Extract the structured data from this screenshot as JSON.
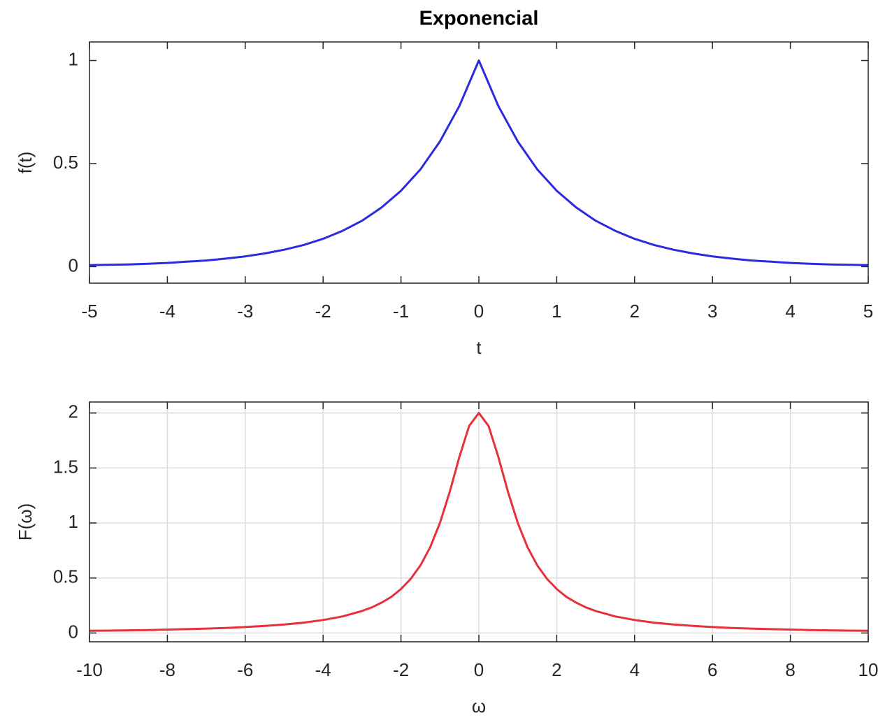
{
  "chart_data": [
    {
      "type": "line",
      "title": "Exponencial",
      "xlabel": "t",
      "ylabel": "f(t)",
      "color": "#2a2ae0",
      "grid": false,
      "x": [
        -5,
        -4.75,
        -4.5,
        -4.25,
        -4,
        -3.75,
        -3.5,
        -3.25,
        -3,
        -2.75,
        -2.5,
        -2.25,
        -2,
        -1.75,
        -1.5,
        -1.25,
        -1,
        -0.75,
        -0.5,
        -0.25,
        0,
        0.25,
        0.5,
        0.75,
        1,
        1.25,
        1.5,
        1.75,
        2,
        2.25,
        2.5,
        2.75,
        3,
        3.25,
        3.5,
        3.75,
        4,
        4.25,
        4.5,
        4.75,
        5
      ],
      "values": [
        0.007,
        0.009,
        0.011,
        0.014,
        0.018,
        0.024,
        0.03,
        0.039,
        0.05,
        0.064,
        0.082,
        0.105,
        0.135,
        0.174,
        0.223,
        0.287,
        0.368,
        0.472,
        0.607,
        0.779,
        1,
        0.779,
        0.607,
        0.472,
        0.368,
        0.287,
        0.223,
        0.174,
        0.135,
        0.105,
        0.082,
        0.064,
        0.05,
        0.039,
        0.03,
        0.024,
        0.018,
        0.014,
        0.011,
        0.009,
        0.007
      ],
      "xlim": [
        -5,
        5
      ],
      "xticks": [
        -5,
        -4,
        -3,
        -2,
        -1,
        0,
        1,
        2,
        3,
        4,
        5
      ],
      "ylim": [
        -0.08,
        1.09
      ],
      "yticks": [
        0,
        0.5,
        1
      ]
    },
    {
      "type": "line",
      "xlabel": "ω",
      "ylabel": "F(ω)",
      "color": "#e8303a",
      "grid": true,
      "x": [
        -10,
        -9.5,
        -9,
        -8.5,
        -8,
        -7.5,
        -7,
        -6.5,
        -6,
        -5.5,
        -5,
        -4.5,
        -4,
        -3.5,
        -3,
        -2.75,
        -2.5,
        -2.25,
        -2,
        -1.75,
        -1.5,
        -1.25,
        -1,
        -0.75,
        -0.5,
        -0.25,
        0,
        0.25,
        0.5,
        0.75,
        1,
        1.25,
        1.5,
        1.75,
        2,
        2.25,
        2.5,
        2.75,
        3,
        3.5,
        4,
        4.5,
        5,
        5.5,
        6,
        6.5,
        7,
        7.5,
        8,
        8.5,
        9,
        9.5,
        10
      ],
      "values": [
        0.02,
        0.022,
        0.024,
        0.027,
        0.031,
        0.035,
        0.04,
        0.046,
        0.054,
        0.064,
        0.077,
        0.094,
        0.118,
        0.151,
        0.2,
        0.233,
        0.276,
        0.328,
        0.4,
        0.492,
        0.615,
        0.78,
        1,
        1.28,
        1.6,
        1.882,
        2,
        1.882,
        1.6,
        1.28,
        1,
        0.78,
        0.615,
        0.492,
        0.4,
        0.328,
        0.276,
        0.233,
        0.2,
        0.151,
        0.118,
        0.094,
        0.077,
        0.064,
        0.054,
        0.046,
        0.04,
        0.035,
        0.031,
        0.027,
        0.024,
        0.022,
        0.02
      ],
      "xlim": [
        -10,
        10
      ],
      "xticks": [
        -10,
        -8,
        -6,
        -4,
        -2,
        0,
        2,
        4,
        6,
        8,
        10
      ],
      "ylim": [
        -0.08,
        2.1
      ],
      "yticks": [
        0,
        0.5,
        1,
        1.5,
        2
      ]
    }
  ]
}
